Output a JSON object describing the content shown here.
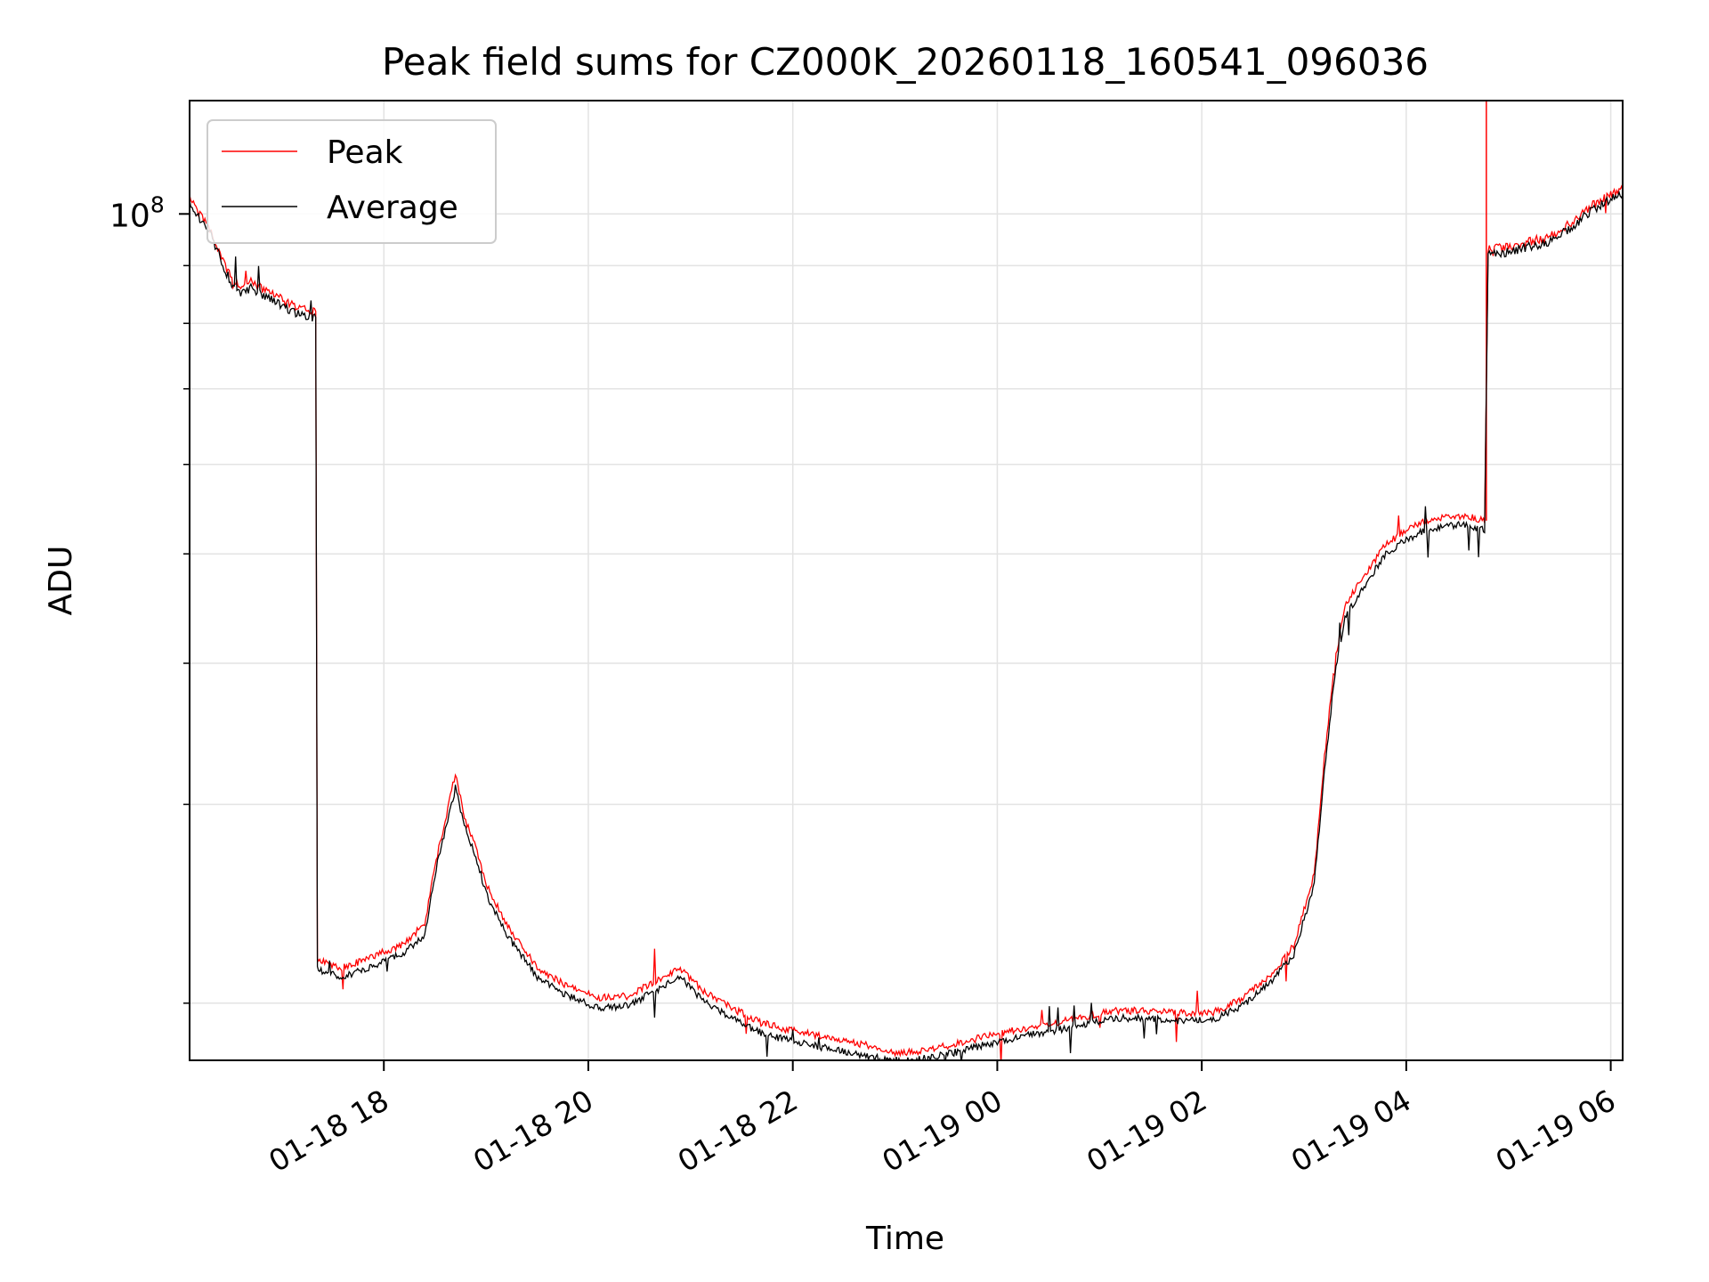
{
  "chart_data": {
    "type": "line",
    "title": "Peak field sums for CZ000K_20260118_160541_096036",
    "xlabel": "Time",
    "ylabel": "ADU",
    "y_scale": "log",
    "ylim": [
      17800000,
      126000000
    ],
    "xlim": [
      "2026-01-18 16:06",
      "2026-01-19 06:07"
    ],
    "grid": true,
    "legend_position": "upper-left",
    "x_ticks": [
      {
        "value": "2026-01-18 18:00",
        "label": "01-18 18"
      },
      {
        "value": "2026-01-18 20:00",
        "label": "01-18 20"
      },
      {
        "value": "2026-01-18 22:00",
        "label": "01-18 22"
      },
      {
        "value": "2026-01-19 00:00",
        "label": "01-19 00"
      },
      {
        "value": "2026-01-19 02:00",
        "label": "01-19 02"
      },
      {
        "value": "2026-01-19 04:00",
        "label": "01-19 04"
      },
      {
        "value": "2026-01-19 06:00",
        "label": "01-19 06"
      }
    ],
    "y_major_ticks": [
      {
        "value": 100000000,
        "base": "10",
        "exp": "8"
      }
    ],
    "y_minor_ticks": [
      20000000,
      30000000,
      40000000,
      50000000,
      60000000,
      70000000,
      80000000,
      90000000
    ],
    "series": [
      {
        "name": "Peak",
        "color": "#ff0000",
        "spikes": [
          {
            "x": "2026-01-19 04:47",
            "y": 126000000
          }
        ],
        "points": [
          [
            "2026-01-18 16:06",
            103000000
          ],
          [
            "2026-01-18 16:18",
            97000000
          ],
          [
            "2026-01-18 16:30",
            88000000
          ],
          [
            "2026-01-18 16:36",
            86000000
          ],
          [
            "2026-01-18 16:42",
            87000000
          ],
          [
            "2026-01-18 16:54",
            85000000
          ],
          [
            "2026-01-18 17:06",
            83000000
          ],
          [
            "2026-01-18 17:18",
            82000000
          ],
          [
            "2026-01-18 17:20",
            82000000
          ],
          [
            "2026-01-18 17:21",
            21800000
          ],
          [
            "2026-01-18 17:36",
            21500000
          ],
          [
            "2026-01-18 17:54",
            22000000
          ],
          [
            "2026-01-18 18:12",
            22600000
          ],
          [
            "2026-01-18 18:24",
            23500000
          ],
          [
            "2026-01-18 18:30",
            26500000
          ],
          [
            "2026-01-18 18:36",
            29000000
          ],
          [
            "2026-01-18 18:42",
            32000000
          ],
          [
            "2026-01-18 18:48",
            29000000
          ],
          [
            "2026-01-18 18:54",
            27500000
          ],
          [
            "2026-01-18 19:00",
            25500000
          ],
          [
            "2026-01-18 19:12",
            23500000
          ],
          [
            "2026-01-18 19:30",
            21500000
          ],
          [
            "2026-01-18 19:48",
            20700000
          ],
          [
            "2026-01-18 20:06",
            20200000
          ],
          [
            "2026-01-18 20:24",
            20300000
          ],
          [
            "2026-01-18 20:36",
            20800000
          ],
          [
            "2026-01-18 20:54",
            21500000
          ],
          [
            "2026-01-18 21:06",
            20600000
          ],
          [
            "2026-01-18 21:24",
            19800000
          ],
          [
            "2026-01-18 21:42",
            19200000
          ],
          [
            "2026-01-18 22:00",
            18900000
          ],
          [
            "2026-01-18 22:24",
            18600000
          ],
          [
            "2026-01-18 22:48",
            18300000
          ],
          [
            "2026-01-18 23:00",
            18100000
          ],
          [
            "2026-01-18 23:12",
            18100000
          ],
          [
            "2026-01-18 23:36",
            18400000
          ],
          [
            "2026-01-19 00:00",
            18800000
          ],
          [
            "2026-01-19 00:24",
            19100000
          ],
          [
            "2026-01-19 00:48",
            19400000
          ],
          [
            "2026-01-19 01:06",
            19700000
          ],
          [
            "2026-01-19 01:24",
            19700000
          ],
          [
            "2026-01-19 01:48",
            19600000
          ],
          [
            "2026-01-19 02:06",
            19600000
          ],
          [
            "2026-01-19 02:24",
            20200000
          ],
          [
            "2026-01-19 02:42",
            21300000
          ],
          [
            "2026-01-19 02:54",
            22500000
          ],
          [
            "2026-01-19 03:06",
            26000000
          ],
          [
            "2026-01-19 03:12",
            33000000
          ],
          [
            "2026-01-19 03:18",
            40000000
          ],
          [
            "2026-01-19 03:24",
            45000000
          ],
          [
            "2026-01-19 03:36",
            48000000
          ],
          [
            "2026-01-19 03:48",
            51000000
          ],
          [
            "2026-01-19 04:00",
            52500000
          ],
          [
            "2026-01-19 04:12",
            53500000
          ],
          [
            "2026-01-19 04:24",
            54000000
          ],
          [
            "2026-01-19 04:36",
            54000000
          ],
          [
            "2026-01-19 04:46",
            53500000
          ],
          [
            "2026-01-19 04:48",
            93000000
          ],
          [
            "2026-01-19 05:00",
            93500000
          ],
          [
            "2026-01-19 05:12",
            94500000
          ],
          [
            "2026-01-19 05:24",
            95500000
          ],
          [
            "2026-01-19 05:36",
            98000000
          ],
          [
            "2026-01-19 05:48",
            101500000
          ],
          [
            "2026-01-19 06:00",
            104000000
          ],
          [
            "2026-01-19 06:07",
            105000000
          ]
        ]
      },
      {
        "name": "Average",
        "color": "#000000",
        "points": [
          [
            "2026-01-18 16:06",
            102000000
          ],
          [
            "2026-01-18 16:18",
            96000000
          ],
          [
            "2026-01-18 16:30",
            87000000
          ],
          [
            "2026-01-18 16:36",
            85000000
          ],
          [
            "2026-01-18 16:42",
            86000000
          ],
          [
            "2026-01-18 16:54",
            84000000
          ],
          [
            "2026-01-18 17:06",
            82000000
          ],
          [
            "2026-01-18 17:18",
            81000000
          ],
          [
            "2026-01-18 17:20",
            81000000
          ],
          [
            "2026-01-18 17:21",
            21400000
          ],
          [
            "2026-01-18 17:36",
            21100000
          ],
          [
            "2026-01-18 17:54",
            21600000
          ],
          [
            "2026-01-18 18:12",
            22200000
          ],
          [
            "2026-01-18 18:24",
            23000000
          ],
          [
            "2026-01-18 18:30",
            26000000
          ],
          [
            "2026-01-18 18:36",
            28500000
          ],
          [
            "2026-01-18 18:42",
            31000000
          ],
          [
            "2026-01-18 18:48",
            28500000
          ],
          [
            "2026-01-18 18:54",
            27000000
          ],
          [
            "2026-01-18 19:00",
            25000000
          ],
          [
            "2026-01-18 19:12",
            23000000
          ],
          [
            "2026-01-18 19:30",
            21100000
          ],
          [
            "2026-01-18 19:48",
            20300000
          ],
          [
            "2026-01-18 20:06",
            19800000
          ],
          [
            "2026-01-18 20:24",
            19900000
          ],
          [
            "2026-01-18 20:36",
            20400000
          ],
          [
            "2026-01-18 20:54",
            21100000
          ],
          [
            "2026-01-18 21:06",
            20200000
          ],
          [
            "2026-01-18 21:24",
            19400000
          ],
          [
            "2026-01-18 21:42",
            18800000
          ],
          [
            "2026-01-18 22:00",
            18500000
          ],
          [
            "2026-01-18 22:24",
            18200000
          ],
          [
            "2026-01-18 22:48",
            17900000
          ],
          [
            "2026-01-18 23:00",
            17800000
          ],
          [
            "2026-01-18 23:12",
            17800000
          ],
          [
            "2026-01-18 23:36",
            18100000
          ],
          [
            "2026-01-19 00:00",
            18500000
          ],
          [
            "2026-01-19 00:24",
            18800000
          ],
          [
            "2026-01-19 00:48",
            19100000
          ],
          [
            "2026-01-19 01:06",
            19400000
          ],
          [
            "2026-01-19 01:24",
            19400000
          ],
          [
            "2026-01-19 01:48",
            19300000
          ],
          [
            "2026-01-19 02:06",
            19300000
          ],
          [
            "2026-01-19 02:24",
            19900000
          ],
          [
            "2026-01-19 02:42",
            21000000
          ],
          [
            "2026-01-19 02:54",
            22100000
          ],
          [
            "2026-01-19 03:06",
            25500000
          ],
          [
            "2026-01-19 03:12",
            32000000
          ],
          [
            "2026-01-19 03:18",
            39000000
          ],
          [
            "2026-01-19 03:24",
            44000000
          ],
          [
            "2026-01-19 03:36",
            47000000
          ],
          [
            "2026-01-19 03:48",
            50000000
          ],
          [
            "2026-01-19 04:00",
            51500000
          ],
          [
            "2026-01-19 04:12",
            52500000
          ],
          [
            "2026-01-19 04:24",
            53000000
          ],
          [
            "2026-01-19 04:36",
            53000000
          ],
          [
            "2026-01-19 04:46",
            52500000
          ],
          [
            "2026-01-19 04:48",
            92000000
          ],
          [
            "2026-01-19 05:00",
            92500000
          ],
          [
            "2026-01-19 05:12",
            93500000
          ],
          [
            "2026-01-19 05:24",
            94500000
          ],
          [
            "2026-01-19 05:36",
            97000000
          ],
          [
            "2026-01-19 05:48",
            100500000
          ],
          [
            "2026-01-19 06:00",
            103000000
          ],
          [
            "2026-01-19 06:07",
            104000000
          ]
        ]
      }
    ]
  }
}
